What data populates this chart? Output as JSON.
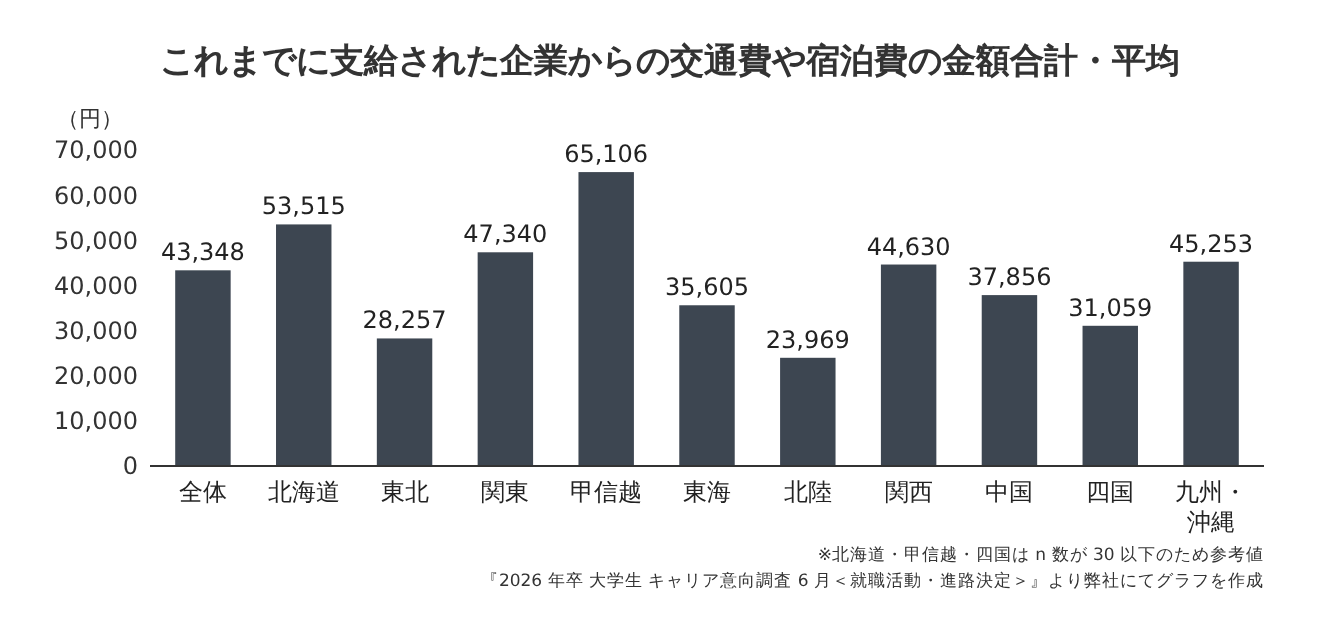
{
  "chart_data": {
    "type": "bar",
    "title": "これまでに支給された企業からの交通費や宿泊費の金額合計・平均",
    "ylabel": "（円）",
    "categories": [
      "全体",
      "北海道",
      "東北",
      "関東",
      "甲信越",
      "東海",
      "北陸",
      "関西",
      "中国",
      "四国",
      "九州・沖縄"
    ],
    "values": [
      43348,
      53515,
      28257,
      47340,
      65106,
      35605,
      23969,
      44630,
      37856,
      31059,
      45253
    ],
    "value_labels": [
      "43,348",
      "53,515",
      "28,257",
      "47,340",
      "65,106",
      "35,605",
      "23,969",
      "44,630",
      "37,856",
      "31,059",
      "45,253"
    ],
    "color": "#3d4651",
    "grid": false,
    "ylim": [
      0,
      70000
    ],
    "yticks": [
      {
        "value": 0,
        "label": "0"
      },
      {
        "value": 10000,
        "label": "10,000"
      },
      {
        "value": 20000,
        "label": "20,000"
      },
      {
        "value": 30000,
        "label": "30,000"
      },
      {
        "value": 40000,
        "label": "40,000"
      },
      {
        "value": 50000,
        "label": "50,000"
      },
      {
        "value": 60000,
        "label": "60,000"
      },
      {
        "value": 70000,
        "label": "70,000"
      }
    ],
    "annotations": [
      "※北海道・甲信越・四国は n 数が 30 以下のため参考値",
      "『2026 年卒 大学生 キャリア意向調査 6 月＜就職活動・進路決定＞』より弊社にてグラフを作成"
    ]
  }
}
